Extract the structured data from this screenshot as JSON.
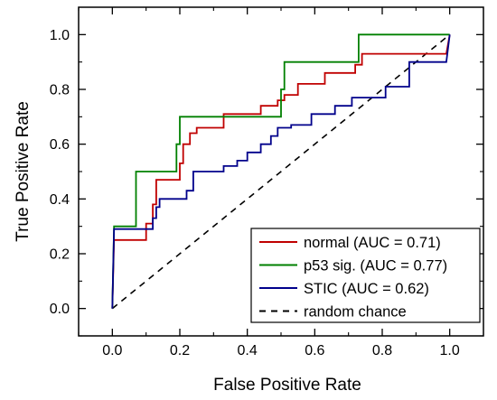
{
  "chart_data": {
    "type": "line",
    "title": "",
    "xlabel": "False Positive Rate",
    "ylabel": "True Positive Rate",
    "xlim": [
      -0.1,
      1.1
    ],
    "ylim": [
      -0.1,
      1.1
    ],
    "x_ticks": [
      "0.0",
      "0.2",
      "0.4",
      "0.6",
      "0.8",
      "1.0"
    ],
    "y_ticks": [
      "0.0",
      "0.2",
      "0.4",
      "0.6",
      "0.8",
      "1.0"
    ],
    "grid": false,
    "legend_position": "bottom-right",
    "series": [
      {
        "name": "normal (AUC = 0.71)",
        "color": "#c00000",
        "style": "solid",
        "points": [
          [
            0,
            0
          ],
          [
            0.005,
            0.25
          ],
          [
            0.03,
            0.25
          ],
          [
            0.1,
            0.25
          ],
          [
            0.1,
            0.31
          ],
          [
            0.12,
            0.31
          ],
          [
            0.12,
            0.38
          ],
          [
            0.13,
            0.38
          ],
          [
            0.13,
            0.47
          ],
          [
            0.2,
            0.47
          ],
          [
            0.2,
            0.53
          ],
          [
            0.21,
            0.53
          ],
          [
            0.21,
            0.6
          ],
          [
            0.23,
            0.6
          ],
          [
            0.23,
            0.64
          ],
          [
            0.25,
            0.64
          ],
          [
            0.25,
            0.66
          ],
          [
            0.33,
            0.66
          ],
          [
            0.33,
            0.71
          ],
          [
            0.44,
            0.71
          ],
          [
            0.44,
            0.74
          ],
          [
            0.49,
            0.74
          ],
          [
            0.49,
            0.76
          ],
          [
            0.51,
            0.76
          ],
          [
            0.51,
            0.78
          ],
          [
            0.55,
            0.78
          ],
          [
            0.55,
            0.82
          ],
          [
            0.63,
            0.82
          ],
          [
            0.63,
            0.86
          ],
          [
            0.72,
            0.86
          ],
          [
            0.72,
            0.89
          ],
          [
            0.74,
            0.89
          ],
          [
            0.74,
            0.93
          ],
          [
            0.99,
            0.93
          ],
          [
            1.0,
            1.0
          ]
        ]
      },
      {
        "name": "p53 sig. (AUC = 0.77)",
        "color": "#008000",
        "style": "solid",
        "points": [
          [
            0,
            0
          ],
          [
            0.005,
            0.3
          ],
          [
            0.07,
            0.3
          ],
          [
            0.07,
            0.5
          ],
          [
            0.19,
            0.5
          ],
          [
            0.19,
            0.6
          ],
          [
            0.2,
            0.6
          ],
          [
            0.2,
            0.7
          ],
          [
            0.5,
            0.7
          ],
          [
            0.5,
            0.8
          ],
          [
            0.51,
            0.8
          ],
          [
            0.51,
            0.9
          ],
          [
            0.73,
            0.9
          ],
          [
            0.73,
            1.0
          ],
          [
            1.0,
            1.0
          ]
        ]
      },
      {
        "name": "STIC (AUC = 0.62)",
        "color": "#00008b",
        "style": "solid",
        "points": [
          [
            0,
            0
          ],
          [
            0.005,
            0.29
          ],
          [
            0.12,
            0.29
          ],
          [
            0.12,
            0.33
          ],
          [
            0.13,
            0.33
          ],
          [
            0.13,
            0.37
          ],
          [
            0.14,
            0.37
          ],
          [
            0.14,
            0.4
          ],
          [
            0.22,
            0.4
          ],
          [
            0.22,
            0.43
          ],
          [
            0.24,
            0.43
          ],
          [
            0.24,
            0.5
          ],
          [
            0.33,
            0.5
          ],
          [
            0.33,
            0.52
          ],
          [
            0.37,
            0.52
          ],
          [
            0.37,
            0.54
          ],
          [
            0.4,
            0.54
          ],
          [
            0.4,
            0.57
          ],
          [
            0.44,
            0.57
          ],
          [
            0.44,
            0.6
          ],
          [
            0.47,
            0.6
          ],
          [
            0.47,
            0.63
          ],
          [
            0.49,
            0.63
          ],
          [
            0.49,
            0.66
          ],
          [
            0.53,
            0.66
          ],
          [
            0.53,
            0.67
          ],
          [
            0.59,
            0.67
          ],
          [
            0.59,
            0.71
          ],
          [
            0.66,
            0.71
          ],
          [
            0.66,
            0.74
          ],
          [
            0.71,
            0.74
          ],
          [
            0.71,
            0.77
          ],
          [
            0.81,
            0.77
          ],
          [
            0.81,
            0.81
          ],
          [
            0.88,
            0.81
          ],
          [
            0.88,
            0.9
          ],
          [
            0.99,
            0.9
          ],
          [
            1.0,
            1.0
          ]
        ]
      },
      {
        "name": "random chance",
        "color": "#000000",
        "style": "dashed",
        "points": [
          [
            0,
            0
          ],
          [
            1,
            1
          ]
        ]
      }
    ]
  }
}
